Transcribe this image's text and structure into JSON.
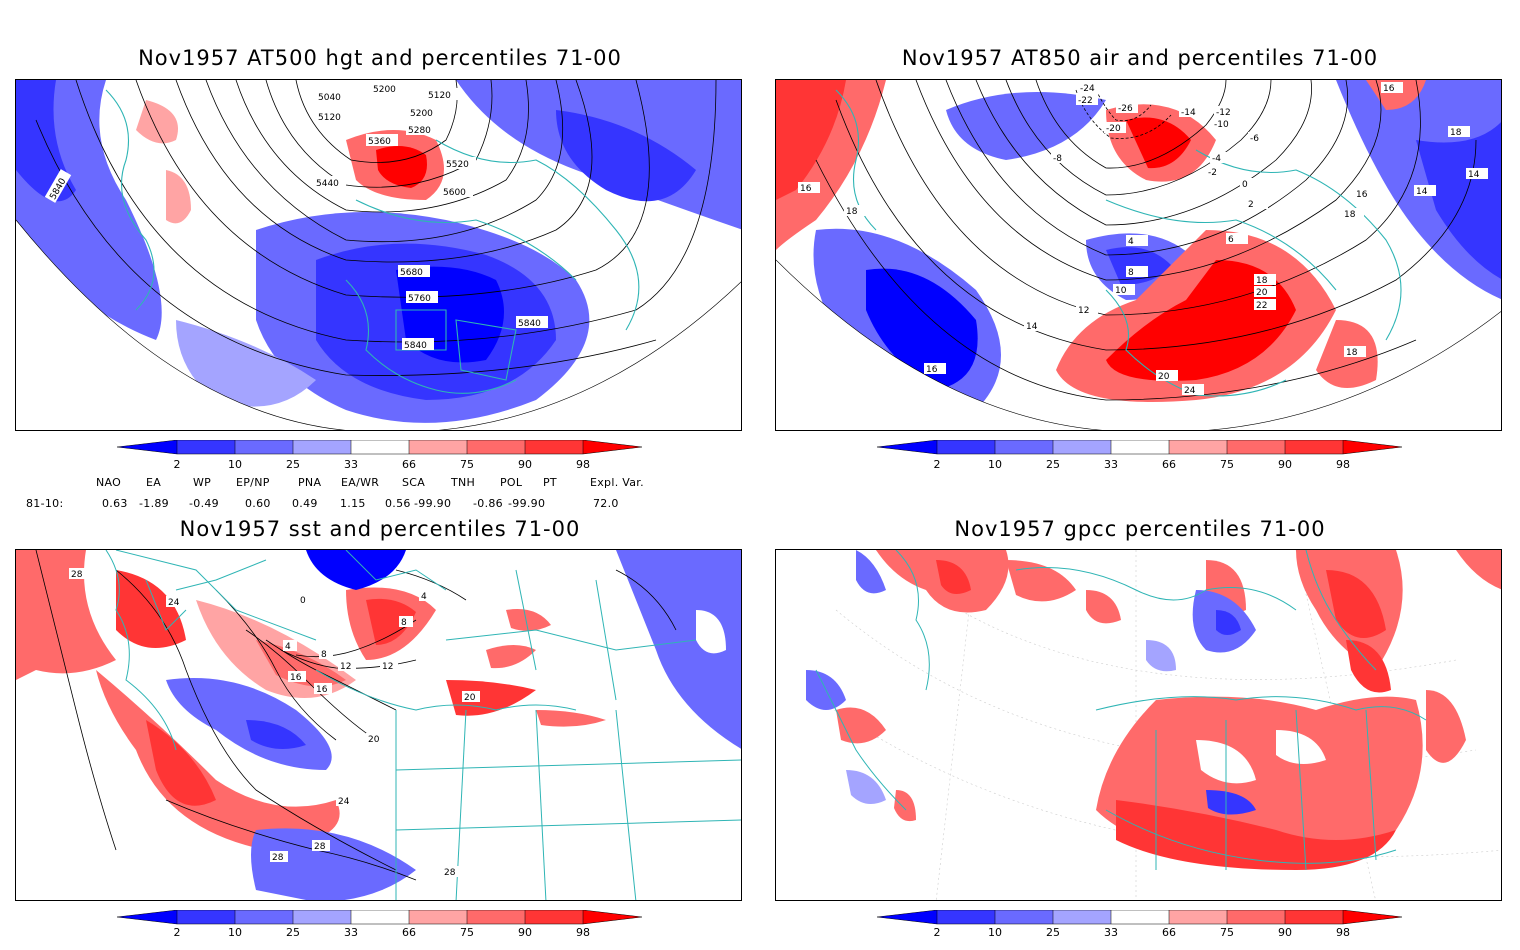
{
  "panels": [
    {
      "title": "Nov1957 AT500 hgt and percentiles 71-00",
      "contour_labels": [
        "5040",
        "5120",
        "5200",
        "5120",
        "5200",
        "5280",
        "5360",
        "5440",
        "5520",
        "5600",
        "5680",
        "5760",
        "5840",
        "5840",
        "5840"
      ]
    },
    {
      "title": "Nov1957 AT850 air and percentiles 71-00",
      "contour_labels": [
        "-24",
        "-22",
        "-26",
        "-20",
        "-14",
        "-12",
        "-10",
        "-8",
        "-6",
        "-4",
        "-2",
        "0",
        "2",
        "4",
        "6",
        "8",
        "10",
        "12",
        "14",
        "16",
        "18",
        "20",
        "22",
        "24",
        "16",
        "18",
        "14",
        "14",
        "16",
        "18",
        "16",
        "18",
        "20",
        "18"
      ]
    },
    {
      "title": "Nov1957 sst and percentiles 71-00",
      "contour_labels": [
        "28",
        "24",
        "0",
        "4",
        "4",
        "8",
        "8",
        "12",
        "12",
        "16",
        "16",
        "20",
        "20",
        "24",
        "28",
        "28",
        "28"
      ]
    },
    {
      "title": "Nov1957 gpcc percentiles 71-00",
      "contour_labels": []
    }
  ],
  "colorbar": {
    "labels": [
      "2",
      "10",
      "25",
      "33",
      "66",
      "75",
      "90",
      "98"
    ],
    "colors": [
      "#0000ff",
      "#3535ff",
      "#6a6aff",
      "#a4a4ff",
      "#ffffff",
      "#ffa4a4",
      "#ff6a6a",
      "#ff3535",
      "#ff0000"
    ]
  },
  "indices": {
    "headers": [
      "NAO",
      "EA",
      "WP",
      "EP/NP",
      "PNA",
      "EA/WR",
      "SCA",
      "TNH",
      "POL",
      "PT",
      "Expl. Var."
    ],
    "row_label": "81-10:",
    "values": [
      "0.63",
      "-1.89",
      "-0.49",
      "0.60",
      "0.49",
      "1.15",
      "0.56",
      "-99.90",
      "-0.86",
      "-99.90",
      "72.0"
    ]
  },
  "colors": {
    "coastline": "#2fb5b5",
    "contour": "#000000"
  }
}
